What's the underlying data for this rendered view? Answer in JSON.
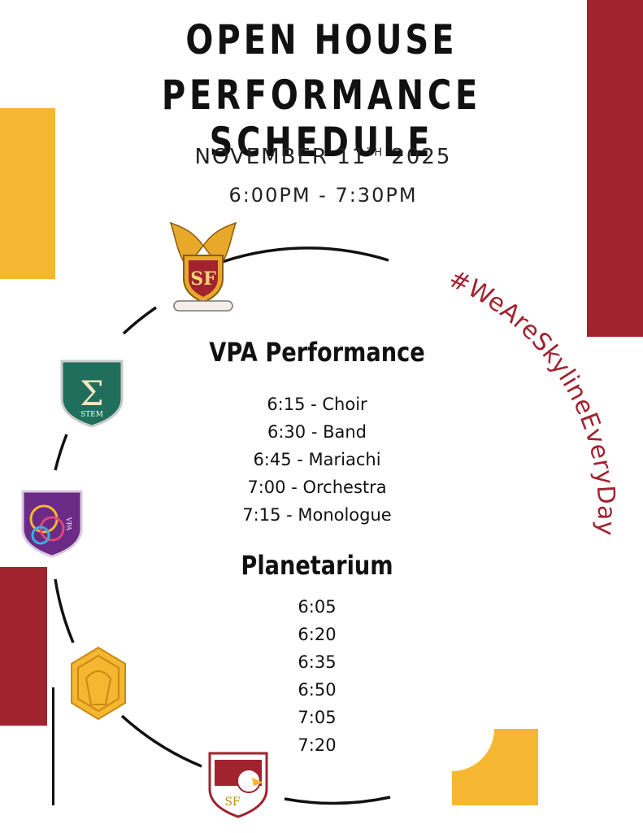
{
  "header": {
    "title_line1": "OPEN HOUSE",
    "title_line2": "PERFORMANCE SCHEDULE",
    "date_prefix": "NOVEMBER 11",
    "date_suffix": "TH",
    "date_year": " 2025",
    "time_range": "6:00PM - 7:30PM"
  },
  "hashtag": "#WeAreSkylineEveryDay",
  "vpa": {
    "heading": "VPA Performance",
    "items": [
      "6:15 - Choir",
      "6:30 - Band",
      "6:45 - Mariachi",
      "7:00 - Orchestra",
      "7:15 - Monologue"
    ]
  },
  "planetarium": {
    "heading": "Planetarium",
    "items": [
      "6:05",
      "6:20",
      "6:35",
      "6:50",
      "7:05",
      "7:20"
    ]
  },
  "logos": {
    "top_crest": "SF",
    "stem_badge": "STEM",
    "vpa_badge": "VPA",
    "bottom_crest": "SF"
  },
  "colors": {
    "maroon": "#a0232e",
    "gold": "#f5b731",
    "teal": "#1f6f5c",
    "purple": "#6b2a86",
    "black": "#111111"
  }
}
